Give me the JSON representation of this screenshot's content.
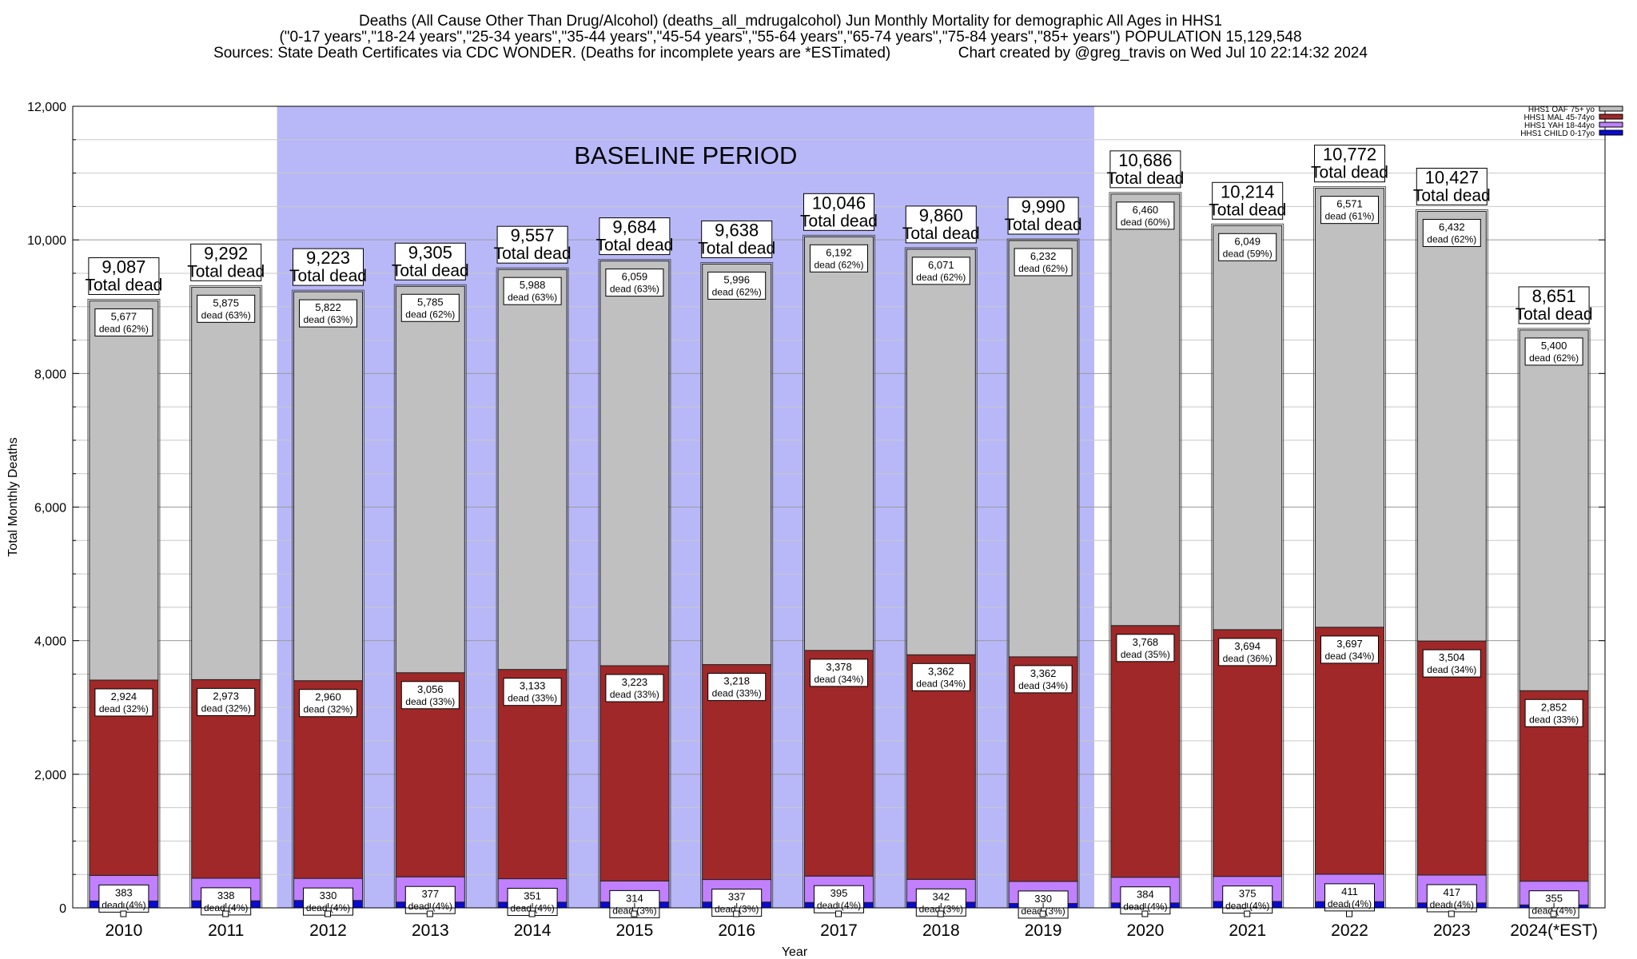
{
  "chart_data": {
    "type": "bar",
    "stacked": true,
    "title_lines": [
      "Deaths (All Cause Other Than Drug/Alcohol) (deaths_all_mdrugalcohol) Jun Monthly Mortality for demographic All Ages in HHS1",
      "(\"0-17 years\",\"18-24 years\",\"25-34 years\",\"35-44 years\",\"45-54 years\",\"55-64 years\",\"65-74 years\",\"75-84 years\",\"85+ years\") POPULATION 15,129,548",
      "Sources: State Death Certificates via CDC WONDER. (Deaths for incomplete years are *ESTimated)                Chart created by @greg_travis on Wed Jul 10 22:14:32 2024"
    ],
    "xlabel": "Year",
    "ylabel": "Total Monthly Deaths",
    "ylim": [
      0,
      12000
    ],
    "yticks": [
      0,
      2000,
      4000,
      6000,
      8000,
      10000,
      12000
    ],
    "ytick_labels": [
      "0",
      "2,000",
      "4,000",
      "6,000",
      "8,000",
      "10,000",
      "12,000"
    ],
    "grid": true,
    "legend_position": "top-right",
    "categories": [
      "2010",
      "2011",
      "2012",
      "2013",
      "2014",
      "2015",
      "2016",
      "2017",
      "2018",
      "2019",
      "2020",
      "2021",
      "2022",
      "2023",
      "2024(*EST)"
    ],
    "series": [
      {
        "name": "HHS1 CHILD 0-17yo",
        "color": "#0a0ad2",
        "values": [
          103,
          106,
          111,
          87,
          85,
          88,
          87,
          81,
          85,
          66,
          74,
          96,
          93,
          74,
          44
        ]
      },
      {
        "name": "HHS1 YAH 18-44yo",
        "color": "#c080ff",
        "values": [
          383,
          338,
          330,
          377,
          351,
          314,
          337,
          395,
          342,
          330,
          384,
          375,
          411,
          417,
          355
        ]
      },
      {
        "name": "HHS1 MAL 45-74yo",
        "color": "#a02828",
        "values": [
          2924,
          2973,
          2960,
          3056,
          3133,
          3223,
          3218,
          3378,
          3362,
          3362,
          3768,
          3694,
          3697,
          3504,
          2852
        ]
      },
      {
        "name": "HHS1 OAF 75+ yo",
        "color": "#c0c0c0",
        "values": [
          5677,
          5875,
          5822,
          5785,
          5988,
          6059,
          5996,
          6192,
          6071,
          6232,
          6460,
          6049,
          6571,
          6432,
          5400
        ]
      }
    ],
    "segment_labels": {
      "yah": [
        {
          "value": "383",
          "pct": "dead (4%)"
        },
        {
          "value": "338",
          "pct": "dead (4%)"
        },
        {
          "value": "330",
          "pct": "dead (4%)"
        },
        {
          "value": "377",
          "pct": "dead (4%)"
        },
        {
          "value": "351",
          "pct": "dead (4%)"
        },
        {
          "value": "314",
          "pct": "dead (3%)"
        },
        {
          "value": "337",
          "pct": "dead (3%)"
        },
        {
          "value": "395",
          "pct": "dead (4%)"
        },
        {
          "value": "342",
          "pct": "dead (3%)"
        },
        {
          "value": "330",
          "pct": "dead (3%)"
        },
        {
          "value": "384",
          "pct": "dead (4%)"
        },
        {
          "value": "375",
          "pct": "dead (4%)"
        },
        {
          "value": "411",
          "pct": "dead (4%)"
        },
        {
          "value": "417",
          "pct": "dead (4%)"
        },
        {
          "value": "355",
          "pct": "dead (4%)"
        }
      ],
      "mal": [
        {
          "value": "2,924",
          "pct": "dead (32%)"
        },
        {
          "value": "2,973",
          "pct": "dead (32%)"
        },
        {
          "value": "2,960",
          "pct": "dead (32%)"
        },
        {
          "value": "3,056",
          "pct": "dead (33%)"
        },
        {
          "value": "3,133",
          "pct": "dead (33%)"
        },
        {
          "value": "3,223",
          "pct": "dead (33%)"
        },
        {
          "value": "3,218",
          "pct": "dead (33%)"
        },
        {
          "value": "3,378",
          "pct": "dead (34%)"
        },
        {
          "value": "3,362",
          "pct": "dead (34%)"
        },
        {
          "value": "3,362",
          "pct": "dead (34%)"
        },
        {
          "value": "3,768",
          "pct": "dead (35%)"
        },
        {
          "value": "3,694",
          "pct": "dead (36%)"
        },
        {
          "value": "3,697",
          "pct": "dead (34%)"
        },
        {
          "value": "3,504",
          "pct": "dead (34%)"
        },
        {
          "value": "2,852",
          "pct": "dead (33%)"
        }
      ],
      "oaf": [
        {
          "value": "5,677",
          "pct": "dead (62%)"
        },
        {
          "value": "5,875",
          "pct": "dead (63%)"
        },
        {
          "value": "5,822",
          "pct": "dead (63%)"
        },
        {
          "value": "5,785",
          "pct": "dead (62%)"
        },
        {
          "value": "5,988",
          "pct": "dead (63%)"
        },
        {
          "value": "6,059",
          "pct": "dead (63%)"
        },
        {
          "value": "5,996",
          "pct": "dead (62%)"
        },
        {
          "value": "6,192",
          "pct": "dead (62%)"
        },
        {
          "value": "6,071",
          "pct": "dead (62%)"
        },
        {
          "value": "6,232",
          "pct": "dead (62%)"
        },
        {
          "value": "6,460",
          "pct": "dead (60%)"
        },
        {
          "value": "6,049",
          "pct": "dead (59%)"
        },
        {
          "value": "6,571",
          "pct": "dead (61%)"
        },
        {
          "value": "6,432",
          "pct": "dead (62%)"
        },
        {
          "value": "5,400",
          "pct": "dead (62%)"
        }
      ]
    },
    "totals": [
      9087,
      9292,
      9223,
      9305,
      9557,
      9684,
      9638,
      10046,
      9860,
      9990,
      10686,
      10214,
      10772,
      10427,
      8651
    ],
    "total_labels": [
      "9,087",
      "9,292",
      "9,223",
      "9,305",
      "9,557",
      "9,684",
      "9,638",
      "10,046",
      "9,860",
      "9,990",
      "10,686",
      "10,214",
      "10,772",
      "10,427",
      "8,651"
    ],
    "total_suffix": "Total dead",
    "annotations": [
      {
        "text": "BASELINE PERIOD",
        "from_category": "2012",
        "to_category": "2019",
        "color": "#b8b8f8"
      }
    ]
  }
}
